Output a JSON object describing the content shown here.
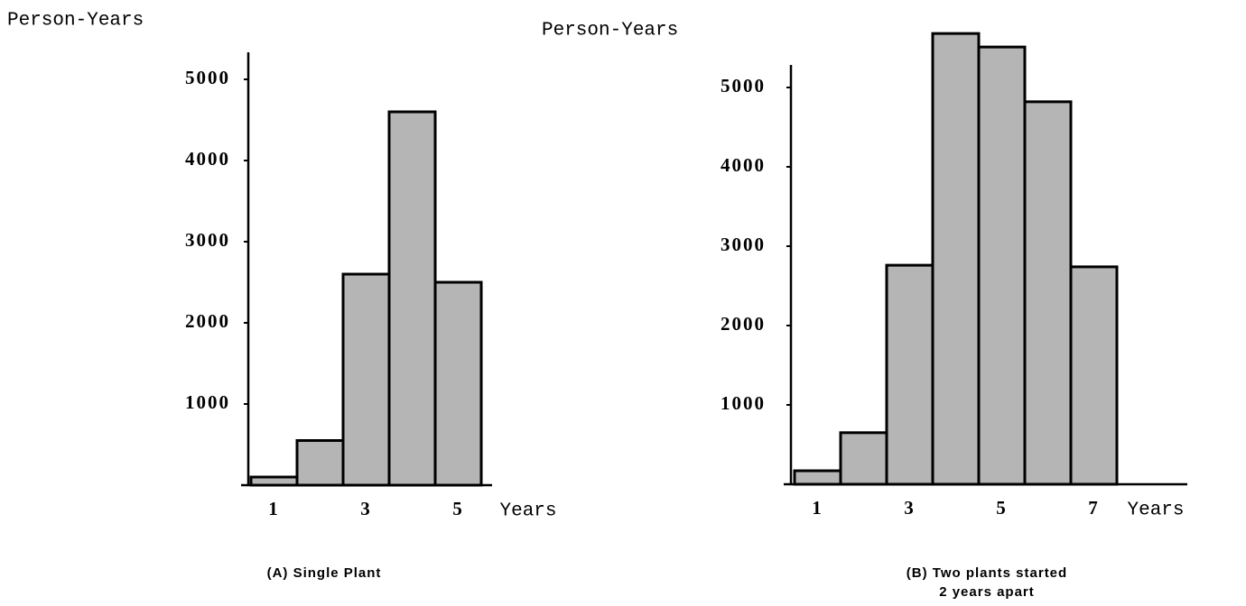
{
  "chart_data": [
    {
      "type": "bar",
      "yaxis_label": "Person-Years",
      "xaxis_label": "Years",
      "categories": [
        "1",
        null,
        "3",
        null,
        "5"
      ],
      "values": [
        100,
        550,
        2600,
        4600,
        2500
      ],
      "color": "#b5b5b5",
      "ylim": [
        0,
        5500
      ],
      "yticks": [
        1000,
        2000,
        3000,
        4000,
        5000
      ],
      "caption": [
        "(A) Single Plant"
      ]
    },
    {
      "type": "bar",
      "yaxis_label": "Person-Years",
      "xaxis_label": "Years",
      "categories": [
        "1",
        null,
        "3",
        null,
        "5",
        null,
        "7"
      ],
      "values": [
        170,
        650,
        2760,
        5680,
        5510,
        4820,
        2740
      ],
      "color": "#b5b5b5",
      "ylim": [
        0,
        6000
      ],
      "yticks": [
        1000,
        2000,
        3000,
        4000,
        5000
      ],
      "caption": [
        "(B) Two plants started",
        "2 years apart"
      ]
    }
  ]
}
